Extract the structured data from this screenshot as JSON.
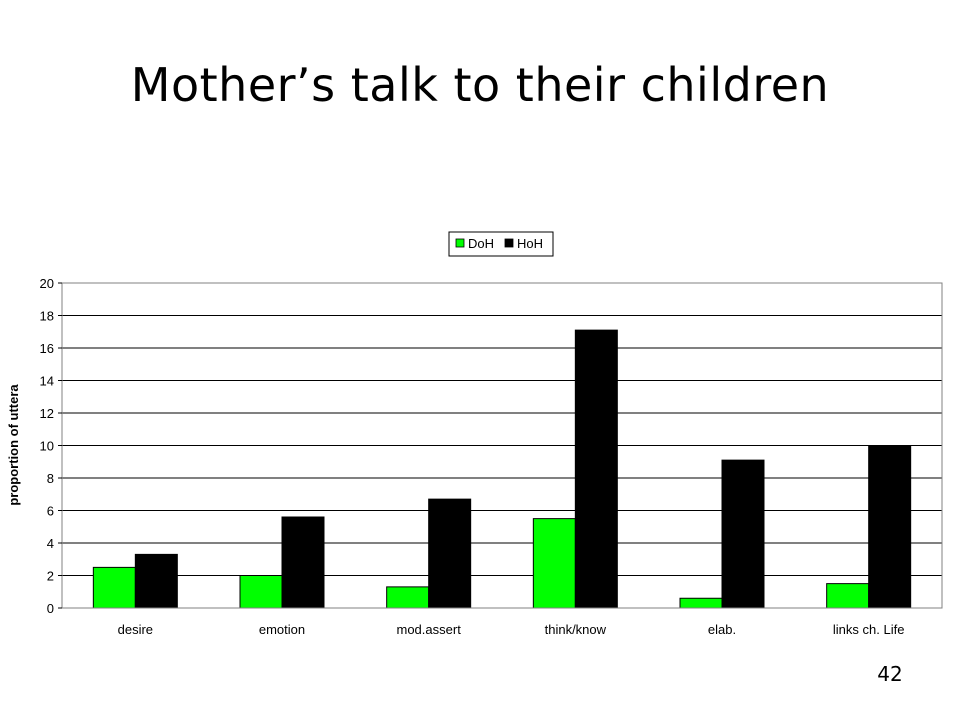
{
  "slide": {
    "title": "Mother’s talk to their children",
    "page_number": "42"
  },
  "chart_data": {
    "type": "bar",
    "title": "",
    "xlabel": "",
    "ylabel": "proportion of uttera",
    "categories": [
      "desire",
      "emotion",
      "mod.assert",
      "think/know",
      "elab.",
      "links ch. Life"
    ],
    "series": [
      {
        "name": "DoH",
        "color": "#00ff00",
        "values": [
          2.5,
          2.0,
          1.3,
          5.5,
          0.6,
          1.5
        ]
      },
      {
        "name": "HoH",
        "color": "#000000",
        "values": [
          3.3,
          5.6,
          6.7,
          17.1,
          9.1,
          10.0
        ]
      }
    ],
    "ylim": [
      0,
      20
    ],
    "yticks": [
      0,
      2,
      4,
      6,
      8,
      10,
      12,
      14,
      16,
      18,
      20
    ],
    "grid": true,
    "legend_position": "top"
  }
}
